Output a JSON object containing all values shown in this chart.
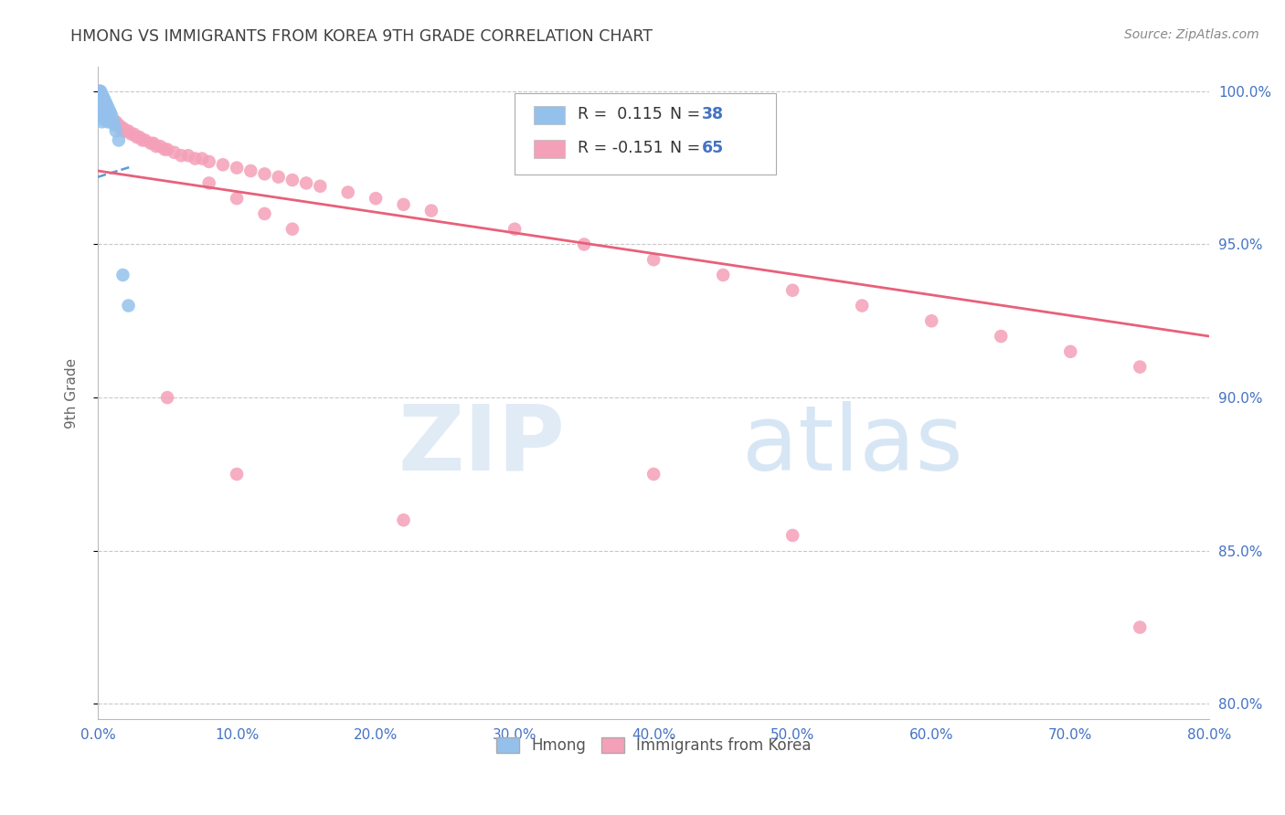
{
  "title": "HMONG VS IMMIGRANTS FROM KOREA 9TH GRADE CORRELATION CHART",
  "source": "Source: ZipAtlas.com",
  "ylabel": "9th Grade",
  "watermark_zip": "ZIP",
  "watermark_atlas": "atlas",
  "xmin": 0.0,
  "xmax": 0.8,
  "ymin": 0.795,
  "ymax": 1.008,
  "yticks": [
    0.8,
    0.85,
    0.9,
    0.95,
    1.0
  ],
  "ytick_labels": [
    "80.0%",
    "85.0%",
    "90.0%",
    "95.0%",
    "100.0%"
  ],
  "xticks": [
    0.0,
    0.1,
    0.2,
    0.3,
    0.4,
    0.5,
    0.6,
    0.7,
    0.8
  ],
  "xtick_labels": [
    "0.0%",
    "10.0%",
    "20.0%",
    "30.0%",
    "40.0%",
    "50.0%",
    "60.0%",
    "70.0%",
    "80.0%"
  ],
  "hmong_R": 0.115,
  "hmong_N": 38,
  "korea_R": -0.151,
  "korea_N": 65,
  "hmong_color": "#94C1EC",
  "korea_color": "#F4A0B8",
  "hmong_line_color": "#5B9BD5",
  "korea_line_color": "#E8607A",
  "axis_label_color": "#4472C4",
  "grid_color": "#C8C8C8",
  "title_color": "#404040",
  "hmong_x": [
    0.001,
    0.001,
    0.001,
    0.001,
    0.001,
    0.002,
    0.002,
    0.002,
    0.002,
    0.003,
    0.003,
    0.003,
    0.003,
    0.003,
    0.004,
    0.004,
    0.004,
    0.004,
    0.005,
    0.005,
    0.005,
    0.006,
    0.006,
    0.006,
    0.007,
    0.007,
    0.007,
    0.008,
    0.008,
    0.009,
    0.009,
    0.01,
    0.011,
    0.012,
    0.013,
    0.015,
    0.018,
    0.022
  ],
  "hmong_y": [
    1.0,
    0.998,
    0.996,
    0.994,
    0.992,
    1.0,
    0.997,
    0.995,
    0.992,
    0.999,
    0.997,
    0.995,
    0.993,
    0.99,
    0.998,
    0.996,
    0.994,
    0.991,
    0.997,
    0.995,
    0.992,
    0.996,
    0.994,
    0.991,
    0.995,
    0.993,
    0.99,
    0.994,
    0.991,
    0.993,
    0.99,
    0.992,
    0.99,
    0.989,
    0.987,
    0.984,
    0.94,
    0.93
  ],
  "korea_x": [
    0.001,
    0.002,
    0.003,
    0.004,
    0.005,
    0.006,
    0.007,
    0.008,
    0.009,
    0.01,
    0.011,
    0.012,
    0.013,
    0.014,
    0.015,
    0.016,
    0.017,
    0.018,
    0.019,
    0.02,
    0.022,
    0.024,
    0.026,
    0.028,
    0.03,
    0.032,
    0.034,
    0.038,
    0.04,
    0.042,
    0.045,
    0.048,
    0.05,
    0.055,
    0.06,
    0.065,
    0.07,
    0.075,
    0.08,
    0.09,
    0.1,
    0.11,
    0.12,
    0.13,
    0.14,
    0.15,
    0.16,
    0.18,
    0.2,
    0.22,
    0.24,
    0.3,
    0.35,
    0.4,
    0.45,
    0.5,
    0.55,
    0.6,
    0.65,
    0.7,
    0.75,
    0.08,
    0.1,
    0.12,
    0.14
  ],
  "korea_y": [
    1.0,
    0.998,
    0.997,
    0.996,
    0.995,
    0.994,
    0.993,
    0.992,
    0.991,
    0.99,
    0.99,
    0.99,
    0.99,
    0.989,
    0.989,
    0.988,
    0.988,
    0.988,
    0.987,
    0.987,
    0.987,
    0.986,
    0.986,
    0.985,
    0.985,
    0.984,
    0.984,
    0.983,
    0.983,
    0.982,
    0.982,
    0.981,
    0.981,
    0.98,
    0.979,
    0.979,
    0.978,
    0.978,
    0.977,
    0.976,
    0.975,
    0.974,
    0.973,
    0.972,
    0.971,
    0.97,
    0.969,
    0.967,
    0.965,
    0.963,
    0.961,
    0.955,
    0.95,
    0.945,
    0.94,
    0.935,
    0.93,
    0.925,
    0.92,
    0.915,
    0.91,
    0.97,
    0.965,
    0.96,
    0.955
  ],
  "korea_x_outliers": [
    0.05,
    0.1,
    0.22,
    0.4,
    0.5,
    0.75
  ],
  "korea_y_outliers": [
    0.9,
    0.875,
    0.86,
    0.875,
    0.855,
    0.825
  ],
  "hmong_trend_x": [
    0.0,
    0.025
  ],
  "hmong_trend_y": [
    0.972,
    0.9755
  ],
  "korea_trend_x": [
    0.0,
    0.8
  ],
  "korea_trend_y": [
    0.974,
    0.92
  ]
}
